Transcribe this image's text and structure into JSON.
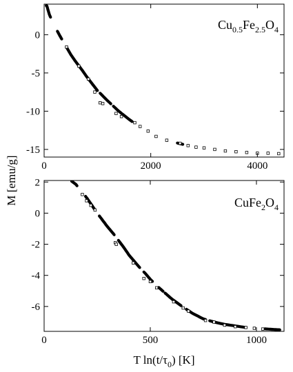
{
  "figure": {
    "ylabel": "M [emu/g]",
    "xlabel_parts": [
      "T ln(t/τ",
      "0",
      ") [K]"
    ]
  },
  "chart_data": [
    {
      "type": "scatter",
      "panel": "top",
      "label_parts": [
        "Cu",
        "0.5",
        "Fe",
        "2.5",
        "O",
        "4"
      ],
      "xlim": [
        0,
        4500
      ],
      "ylim": [
        -16,
        4
      ],
      "xticks": [
        0,
        2000,
        4000
      ],
      "yticks": [
        0,
        -5,
        -10,
        -15
      ],
      "grid": false,
      "curve": [
        [
          50,
          3.8
        ],
        [
          100,
          2.6
        ],
        [
          200,
          1.1
        ],
        [
          300,
          -0.2
        ],
        [
          400,
          -1.4
        ],
        [
          500,
          -2.6
        ],
        [
          600,
          -3.6
        ],
        [
          700,
          -4.5
        ],
        [
          800,
          -5.5
        ],
        [
          900,
          -6.4
        ],
        [
          1000,
          -7.3
        ],
        [
          1200,
          -8.7
        ],
        [
          1400,
          -10.0
        ],
        [
          1600,
          -11.1
        ],
        [
          1800,
          -12.1
        ],
        [
          2000,
          -12.9
        ],
        [
          2200,
          -13.5
        ],
        [
          2400,
          -14.0
        ],
        [
          2700,
          -14.5
        ],
        [
          3000,
          -14.8
        ],
        [
          3300,
          -15.1
        ],
        [
          3600,
          -15.3
        ],
        [
          3900,
          -15.4
        ],
        [
          4200,
          -15.5
        ],
        [
          4450,
          -15.55
        ]
      ],
      "segments": [
        [
          40,
          120
        ],
        [
          250,
          330
        ],
        [
          420,
          1000
        ],
        [
          1050,
          1250
        ],
        [
          1300,
          1650
        ],
        [
          2500,
          2600
        ]
      ],
      "open_markers": [
        [
          420,
          -1.6
        ],
        [
          650,
          -4.1
        ],
        [
          830,
          -5.8
        ],
        [
          950,
          -7.5
        ],
        [
          1050,
          -8.9
        ],
        [
          1100,
          -9.0
        ],
        [
          1350,
          -10.3
        ],
        [
          1450,
          -10.7
        ],
        [
          1700,
          -11.5
        ],
        [
          1800,
          -12.0
        ],
        [
          1950,
          -12.6
        ],
        [
          2100,
          -13.3
        ],
        [
          2300,
          -13.8
        ],
        [
          2550,
          -14.2
        ],
        [
          2700,
          -14.5
        ],
        [
          2850,
          -14.7
        ],
        [
          3000,
          -14.8
        ],
        [
          3200,
          -15.0
        ],
        [
          3400,
          -15.2
        ],
        [
          3600,
          -15.3
        ],
        [
          3800,
          -15.4
        ],
        [
          4000,
          -15.5
        ],
        [
          4200,
          -15.5
        ],
        [
          4400,
          -15.55
        ]
      ]
    },
    {
      "type": "scatter",
      "panel": "bottom",
      "label_parts": [
        "CuFe",
        "2",
        "O",
        "4"
      ],
      "xlim": [
        0,
        1130
      ],
      "ylim": [
        -7.6,
        2.1
      ],
      "xticks": [
        0,
        500,
        1000
      ],
      "yticks": [
        2,
        0,
        -2,
        -4,
        -6
      ],
      "grid": false,
      "curve": [
        [
          130,
          2.05
        ],
        [
          150,
          1.85
        ],
        [
          175,
          1.4
        ],
        [
          200,
          1.0
        ],
        [
          225,
          0.5
        ],
        [
          250,
          0.0
        ],
        [
          275,
          -0.45
        ],
        [
          300,
          -0.9
        ],
        [
          325,
          -1.3
        ],
        [
          350,
          -1.75
        ],
        [
          375,
          -2.2
        ],
        [
          400,
          -2.7
        ],
        [
          425,
          -3.1
        ],
        [
          450,
          -3.5
        ],
        [
          475,
          -3.85
        ],
        [
          500,
          -4.25
        ],
        [
          525,
          -4.6
        ],
        [
          550,
          -4.9
        ],
        [
          600,
          -5.5
        ],
        [
          650,
          -6.0
        ],
        [
          700,
          -6.45
        ],
        [
          750,
          -6.8
        ],
        [
          800,
          -7.0
        ],
        [
          850,
          -7.15
        ],
        [
          900,
          -7.25
        ],
        [
          950,
          -7.35
        ],
        [
          1000,
          -7.4
        ],
        [
          1050,
          -7.45
        ],
        [
          1110,
          -7.5
        ]
      ],
      "segments": [
        [
          130,
          155
        ],
        [
          195,
          240
        ],
        [
          260,
          330
        ],
        [
          350,
          450
        ],
        [
          470,
          510
        ],
        [
          540,
          560
        ],
        [
          570,
          645
        ],
        [
          670,
          760
        ],
        [
          780,
          950
        ],
        [
          1040,
          1110
        ]
      ],
      "open_markers": [
        [
          180,
          1.2
        ],
        [
          200,
          0.8
        ],
        [
          220,
          0.5
        ],
        [
          240,
          0.2
        ],
        [
          335,
          -1.9
        ],
        [
          340,
          -2.0
        ],
        [
          420,
          -3.2
        ],
        [
          470,
          -4.2
        ],
        [
          500,
          -4.4
        ],
        [
          530,
          -4.8
        ],
        [
          610,
          -5.7
        ],
        [
          655,
          -6.1
        ],
        [
          680,
          -6.3
        ],
        [
          760,
          -6.9
        ],
        [
          800,
          -7.0
        ],
        [
          850,
          -7.2
        ],
        [
          900,
          -7.3
        ],
        [
          950,
          -7.35
        ],
        [
          990,
          -7.4
        ],
        [
          1030,
          -7.45
        ]
      ]
    }
  ]
}
